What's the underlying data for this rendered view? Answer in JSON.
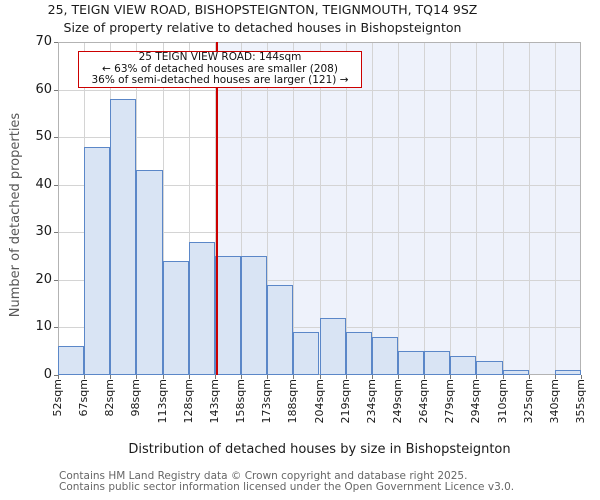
{
  "title": "25, TEIGN VIEW ROAD, BISHOPSTEIGNTON, TEIGNMOUTH, TQ14 9SZ",
  "subtitle": "Size of property relative to detached houses in Bishopsteignton",
  "annotation": {
    "line1": "25 TEIGN VIEW ROAD: 144sqm",
    "line2": "← 63% of detached houses are smaller (208)",
    "line3": "36% of semi-detached houses are larger (121) →"
  },
  "chart_data": {
    "type": "bar",
    "title": "Size of property relative to detached houses in Bishopsteignton",
    "categories": [
      "52sqm",
      "67sqm",
      "82sqm",
      "98sqm",
      "113sqm",
      "128sqm",
      "143sqm",
      "158sqm",
      "173sqm",
      "188sqm",
      "204sqm",
      "219sqm",
      "234sqm",
      "249sqm",
      "264sqm",
      "279sqm",
      "294sqm",
      "310sqm",
      "325sqm",
      "340sqm",
      "355sqm"
    ],
    "bin_edges_sqm": [
      52,
      67,
      82,
      98,
      113,
      128,
      143,
      158,
      173,
      188,
      204,
      219,
      234,
      249,
      264,
      279,
      294,
      310,
      325,
      340,
      355
    ],
    "values": [
      6,
      48,
      58,
      43,
      24,
      28,
      25,
      25,
      19,
      9,
      12,
      9,
      8,
      5,
      5,
      4,
      3,
      1,
      0,
      1
    ],
    "xlabel": "Distribution of detached houses by size in Bishopsteignton",
    "ylabel": "Number of detached properties",
    "ylim": [
      0,
      70
    ],
    "yticks": [
      0,
      10,
      20,
      30,
      40,
      50,
      60,
      70
    ],
    "grid": true,
    "legend": "none",
    "marker": {
      "label": "25 TEIGN VIEW ROAD",
      "value_sqm": 144,
      "line_color": "#cc0000",
      "shaded_region": "right-of-marker"
    }
  },
  "colors": {
    "bar_fill": "#d9e4f4",
    "bar_edge": "#5b87c8",
    "marker_line": "#cc0000",
    "shade": "#eef2fb",
    "gridline": "#d4d4d4",
    "axis_text": "#1a1a1a",
    "muted_text": "#666666"
  },
  "footer": {
    "line1": "Contains HM Land Registry data © Crown copyright and database right 2025.",
    "line2": "Contains public sector information licensed under the Open Government Licence v3.0."
  }
}
